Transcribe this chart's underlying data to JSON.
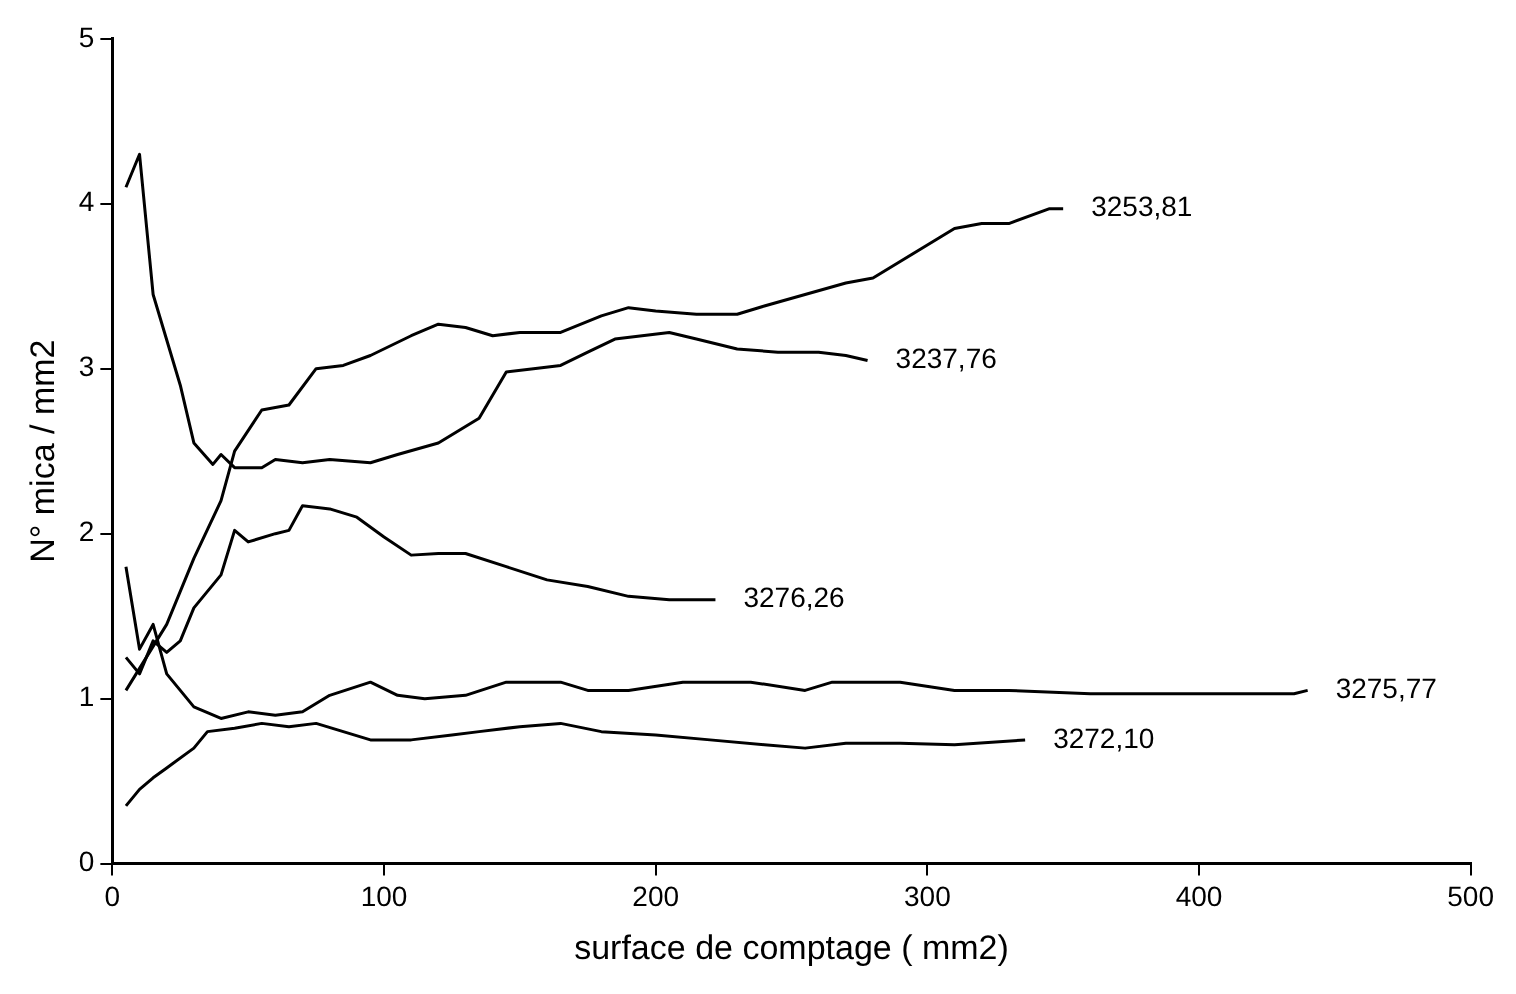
{
  "chart_data": {
    "type": "line",
    "xlabel": "surface de comptage ( mm2)",
    "ylabel": "N° mica / mm2",
    "xlim": [
      0,
      500
    ],
    "xticks": [
      0,
      100,
      200,
      300,
      400,
      500
    ],
    "ylim": [
      0,
      5
    ],
    "yticks": [
      0,
      1,
      2,
      3,
      4,
      5
    ],
    "grid": false,
    "legend": false,
    "marker": "none",
    "line_style": "solid",
    "series": [
      {
        "name": "3253,81",
        "color": "#000000",
        "x": [
          5,
          20,
          30,
          40,
          45,
          55,
          65,
          75,
          85,
          95,
          110,
          120,
          130,
          140,
          150,
          165,
          180,
          190,
          200,
          215,
          230,
          240,
          255,
          270,
          280,
          290,
          300,
          310,
          320,
          330,
          345,
          350
        ],
        "values": [
          1.05,
          1.45,
          1.85,
          2.2,
          2.5,
          2.75,
          2.78,
          3.0,
          3.02,
          3.08,
          3.2,
          3.27,
          3.25,
          3.2,
          3.22,
          3.22,
          3.32,
          3.37,
          3.35,
          3.33,
          3.33,
          3.38,
          3.45,
          3.52,
          3.55,
          3.65,
          3.75,
          3.85,
          3.88,
          3.88,
          3.97,
          3.97
        ]
      },
      {
        "name": "3237,76",
        "color": "#000000",
        "x": [
          5,
          10,
          15,
          25,
          30,
          37,
          40,
          45,
          55,
          60,
          70,
          80,
          95,
          105,
          120,
          135,
          145,
          155,
          165,
          175,
          185,
          195,
          205,
          215,
          230,
          245,
          260,
          270,
          278
        ],
        "values": [
          4.1,
          4.3,
          3.45,
          2.9,
          2.55,
          2.42,
          2.48,
          2.4,
          2.4,
          2.45,
          2.43,
          2.45,
          2.43,
          2.48,
          2.55,
          2.7,
          2.98,
          3.0,
          3.02,
          3.1,
          3.18,
          3.2,
          3.22,
          3.18,
          3.12,
          3.1,
          3.1,
          3.08,
          3.05
        ]
      },
      {
        "name": "3276,26",
        "color": "#000000",
        "x": [
          5,
          10,
          15,
          20,
          25,
          30,
          40,
          45,
          50,
          60,
          65,
          70,
          80,
          90,
          100,
          110,
          120,
          130,
          145,
          160,
          175,
          190,
          205,
          215,
          222
        ],
        "values": [
          1.25,
          1.15,
          1.35,
          1.28,
          1.35,
          1.55,
          1.75,
          2.02,
          1.95,
          2.0,
          2.02,
          2.17,
          2.15,
          2.1,
          1.98,
          1.87,
          1.88,
          1.88,
          1.8,
          1.72,
          1.68,
          1.62,
          1.6,
          1.6,
          1.6
        ]
      },
      {
        "name": "3275,77",
        "color": "#000000",
        "x": [
          5,
          10,
          15,
          20,
          25,
          30,
          40,
          50,
          60,
          70,
          80,
          95,
          105,
          115,
          130,
          145,
          165,
          175,
          190,
          210,
          235,
          255,
          265,
          290,
          310,
          330,
          360,
          380,
          420,
          435,
          440
        ],
        "values": [
          1.8,
          1.3,
          1.45,
          1.15,
          1.05,
          0.95,
          0.88,
          0.92,
          0.9,
          0.92,
          1.02,
          1.1,
          1.02,
          1.0,
          1.02,
          1.1,
          1.1,
          1.05,
          1.05,
          1.1,
          1.1,
          1.05,
          1.1,
          1.1,
          1.05,
          1.05,
          1.03,
          1.03,
          1.03,
          1.03,
          1.05
        ]
      },
      {
        "name": "3272,10",
        "color": "#000000",
        "x": [
          5,
          10,
          15,
          20,
          30,
          35,
          45,
          55,
          65,
          75,
          85,
          95,
          110,
          125,
          135,
          150,
          165,
          180,
          200,
          220,
          240,
          255,
          270,
          290,
          310,
          336
        ],
        "values": [
          0.35,
          0.45,
          0.52,
          0.58,
          0.7,
          0.8,
          0.82,
          0.85,
          0.83,
          0.85,
          0.8,
          0.75,
          0.75,
          0.78,
          0.8,
          0.83,
          0.85,
          0.8,
          0.78,
          0.75,
          0.72,
          0.7,
          0.73,
          0.73,
          0.72,
          0.75
        ]
      }
    ]
  }
}
